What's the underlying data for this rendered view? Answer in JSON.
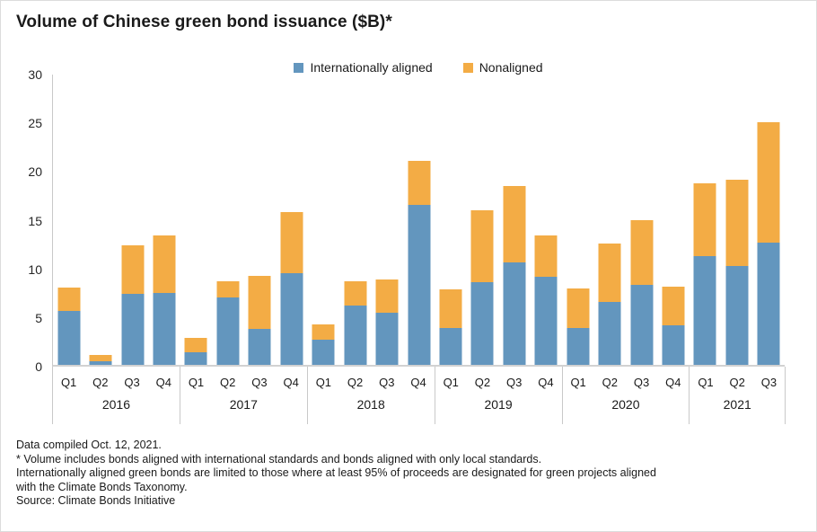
{
  "title": "Volume of Chinese green bond issuance ($B)*",
  "colors": {
    "internationally_aligned": "#6396BE",
    "nonaligned": "#F3AC45",
    "axis_line": "#c9c9c9",
    "text": "#1a1a1a"
  },
  "legend": {
    "items": [
      {
        "label": "Internationally aligned",
        "color": "#6396BE"
      },
      {
        "label": "Nonaligned",
        "color": "#F3AC45"
      }
    ],
    "position": "top-center"
  },
  "chart_data": {
    "type": "bar",
    "stacked": true,
    "title": "Volume of Chinese green bond issuance ($B)*",
    "xlabel": "",
    "ylabel": "",
    "ylim": [
      0,
      30
    ],
    "ytick_step": 5,
    "ytick_labels": [
      "0",
      "5",
      "10",
      "15",
      "20",
      "25",
      "30"
    ],
    "grid": false,
    "legend_position": "top-center",
    "groups": [
      {
        "year": "2016",
        "quarters": [
          "Q1",
          "Q2",
          "Q3",
          "Q4"
        ]
      },
      {
        "year": "2017",
        "quarters": [
          "Q1",
          "Q2",
          "Q3",
          "Q4"
        ]
      },
      {
        "year": "2018",
        "quarters": [
          "Q1",
          "Q2",
          "Q3",
          "Q4"
        ]
      },
      {
        "year": "2019",
        "quarters": [
          "Q1",
          "Q2",
          "Q3",
          "Q4"
        ]
      },
      {
        "year": "2020",
        "quarters": [
          "Q1",
          "Q2",
          "Q3",
          "Q4"
        ]
      },
      {
        "year": "2021",
        "quarters": [
          "Q1",
          "Q2",
          "Q3"
        ]
      }
    ],
    "series": [
      {
        "name": "Internationally aligned",
        "color": "#6396BE",
        "values": [
          5.6,
          0.4,
          7.3,
          7.4,
          1.3,
          7.0,
          3.7,
          9.5,
          2.6,
          6.1,
          5.4,
          16.5,
          3.8,
          8.5,
          10.6,
          9.1,
          3.8,
          6.5,
          8.3,
          4.1,
          11.2,
          10.2,
          12.6
        ]
      },
      {
        "name": "Nonaligned",
        "color": "#F3AC45",
        "values": [
          2.4,
          0.6,
          5.1,
          6.0,
          1.5,
          1.6,
          5.5,
          6.3,
          1.6,
          2.5,
          3.4,
          4.6,
          4.0,
          7.5,
          7.9,
          4.3,
          4.1,
          6.0,
          6.7,
          4.0,
          7.6,
          8.9,
          12.5
        ]
      }
    ]
  },
  "footnotes": [
    "Data compiled Oct. 12, 2021.",
    "* Volume includes bonds aligned with international standards and bonds aligned with only local standards.",
    "Internationally aligned green bonds are limited to those where at least 95% of proceeds are designated for green projects aligned",
    "with the Climate Bonds Taxonomy.",
    "Source: Climate Bonds Initiative"
  ]
}
